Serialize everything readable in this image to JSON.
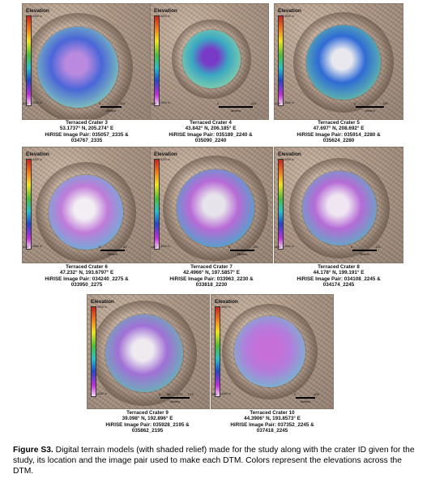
{
  "panels": [
    {
      "crater_name": "Terraced Crater 3",
      "coords": "53.1737° N, 205.274° E",
      "image_pair_line1": "HiRISE Image Pair: 035057_2335 &",
      "image_pair_line2": "034767_2335",
      "legend_title": "Elevation",
      "elev_top": "-3360 m",
      "elev_bottom": "-3920 m",
      "scale_labels": [
        "0",
        "115",
        "230"
      ],
      "scale_unit": "Meters",
      "colors": {
        "center": "#b98adf",
        "mid": "#4a66d8",
        "outer": "#8bd7b6"
      }
    },
    {
      "crater_name": "Terraced Crater 4",
      "coords": "43.842° N, 206.185° E",
      "image_pair_line1": "HiRISE Image Pair: 035189_2240 &",
      "image_pair_line2": "035090_2240",
      "legend_title": "Elevation",
      "elev_top": "-2830 m",
      "elev_bottom": "-2990 m",
      "scale_labels": [
        "0",
        "110",
        "165"
      ],
      "scale_unit": "Meters",
      "colors": {
        "center": "#7a3ac8",
        "mid": "#3aa7c2",
        "outer": "#8fd6a8"
      }
    },
    {
      "crater_name": "Terraced Crater 5",
      "coords": "47.697° N, 208.692° E",
      "image_pair_line1": "HiRISE Image Pair: 035914_2280 &",
      "image_pair_line1b": "",
      "image_pair_line2": "035624_2280",
      "legend_title": "Elevation",
      "elev_top": "-3540 m",
      "elev_bottom": "-3660 m",
      "scale_labels": [
        "0",
        "150",
        "225"
      ],
      "scale_unit": "Meters",
      "colors": {
        "center": "#e8e8ee",
        "mid": "#2f6bd6",
        "outer": "#6cc9a0"
      }
    },
    {
      "crater_name": "Terraced Crater 6",
      "coords": "47.232° N, 193.6797° E",
      "image_pair_line1": "HiRISE Image Pair: 034240_2275 &",
      "image_pair_line2": "033950_2275",
      "legend_title": "Elevation",
      "elev_top": "-4350 m",
      "elev_bottom": "-4560 m",
      "scale_labels": [
        "0",
        "65",
        "130"
      ],
      "scale_unit": "Meters",
      "colors": {
        "center": "#f2eef4",
        "mid": "#c07bd9",
        "outer": "#5fb7d6"
      }
    },
    {
      "crater_name": "Terraced Crater 7",
      "coords": "42.4966° N, 197.5857° E",
      "image_pair_line1": "HiRISE Image Pair: 033963_2230 &",
      "image_pair_line2": "033818_2230",
      "legend_title": "Elevation",
      "elev_top": "-3330 m",
      "elev_bottom": "-3500 m",
      "scale_labels": [
        "0",
        "110",
        "160"
      ],
      "scale_unit": "Meters",
      "colors": {
        "center": "#e6e4ea",
        "mid": "#b86ad6",
        "outer": "#3ab0c8"
      }
    },
    {
      "crater_name": "Terraced Crater 8",
      "coords": "44.178° N, 199.191° E",
      "image_pair_line1": "HiRISE Image Pair: 034108_2245 &",
      "image_pair_line2": "034174_2245",
      "legend_title": "Elevation",
      "elev_top": "-3950 m",
      "elev_bottom": "-4090 m",
      "scale_labels": [
        "0",
        "110",
        "160"
      ],
      "scale_unit": "Meters",
      "colors": {
        "center": "#f0e6f2",
        "mid": "#b56bd6",
        "outer": "#52b5c2"
      }
    },
    {
      "crater_name": "Terraced Crater 9",
      "coords": "39.098° N, 192.896° E",
      "image_pair_line1": "HiRISE Image Pair: 035928_2195 &",
      "image_pair_line2": "035862_2195",
      "legend_title": "Elevation",
      "elev_top": "-3990 m",
      "elev_bottom": "-4280 m",
      "scale_labels": [
        "0",
        "85",
        "170",
        "275"
      ],
      "scale_unit": "Meters",
      "colors": {
        "center": "#eeeaf0",
        "mid": "#a170d6",
        "outer": "#5cbfb0"
      }
    },
    {
      "crater_name": "Terraced Crater 10",
      "coords": "44.3906° N, 193.8573° E",
      "image_pair_line1": "HiRISE Image Pair: 037352_2245 &",
      "image_pair_line2": "037418_2245",
      "legend_title": "Elevation",
      "elev_top": "-3950 m",
      "elev_bottom": "-4080 m",
      "scale_labels": [
        "0",
        "125",
        "250"
      ],
      "scale_unit": "Meters",
      "colors": {
        "center": "#c76fd8",
        "mid": "#b47bdc",
        "outer": "#6cc0cc"
      }
    }
  ],
  "figure_caption": {
    "label": "Figure S3.",
    "text": " Digital terrain models (with shaded relief) made for the study along with the crater ID given for the study, its location and the image pair used to make each DTM. Colors represent the elevations across the DTM."
  }
}
